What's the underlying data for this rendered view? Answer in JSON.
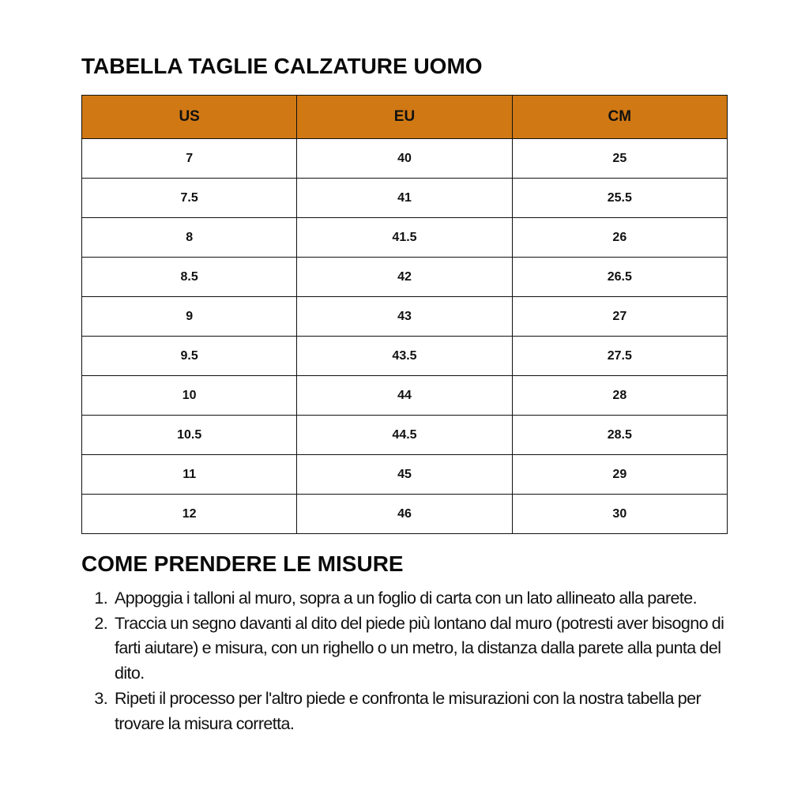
{
  "title": "TABELLA TAGLIE CALZATURE UOMO",
  "header_color": "#D07814",
  "table": {
    "columns": [
      "US",
      "EU",
      "CM"
    ],
    "rows": [
      [
        "7",
        "40",
        "25"
      ],
      [
        "7.5",
        "41",
        "25.5"
      ],
      [
        "8",
        "41.5",
        "26"
      ],
      [
        "8.5",
        "42",
        "26.5"
      ],
      [
        "9",
        "43",
        "27"
      ],
      [
        "9.5",
        "43.5",
        "27.5"
      ],
      [
        "10",
        "44",
        "28"
      ],
      [
        "10.5",
        "44.5",
        "28.5"
      ],
      [
        "11",
        "45",
        "29"
      ],
      [
        "12",
        "46",
        "30"
      ]
    ]
  },
  "howto": {
    "title": "COME PRENDERE LE MISURE",
    "steps": [
      "Appoggia i talloni al muro, sopra a un foglio di carta con un lato allineato alla parete.",
      "Traccia un segno davanti al dito del piede più lontano dal muro (potresti aver bisogno di farti aiutare) e misura, con un righello o un metro, la distanza dalla parete alla punta del dito.",
      "Ripeti il processo per l'altro piede e confronta le misurazioni con la nostra tabella per trovare la misura corretta."
    ]
  }
}
